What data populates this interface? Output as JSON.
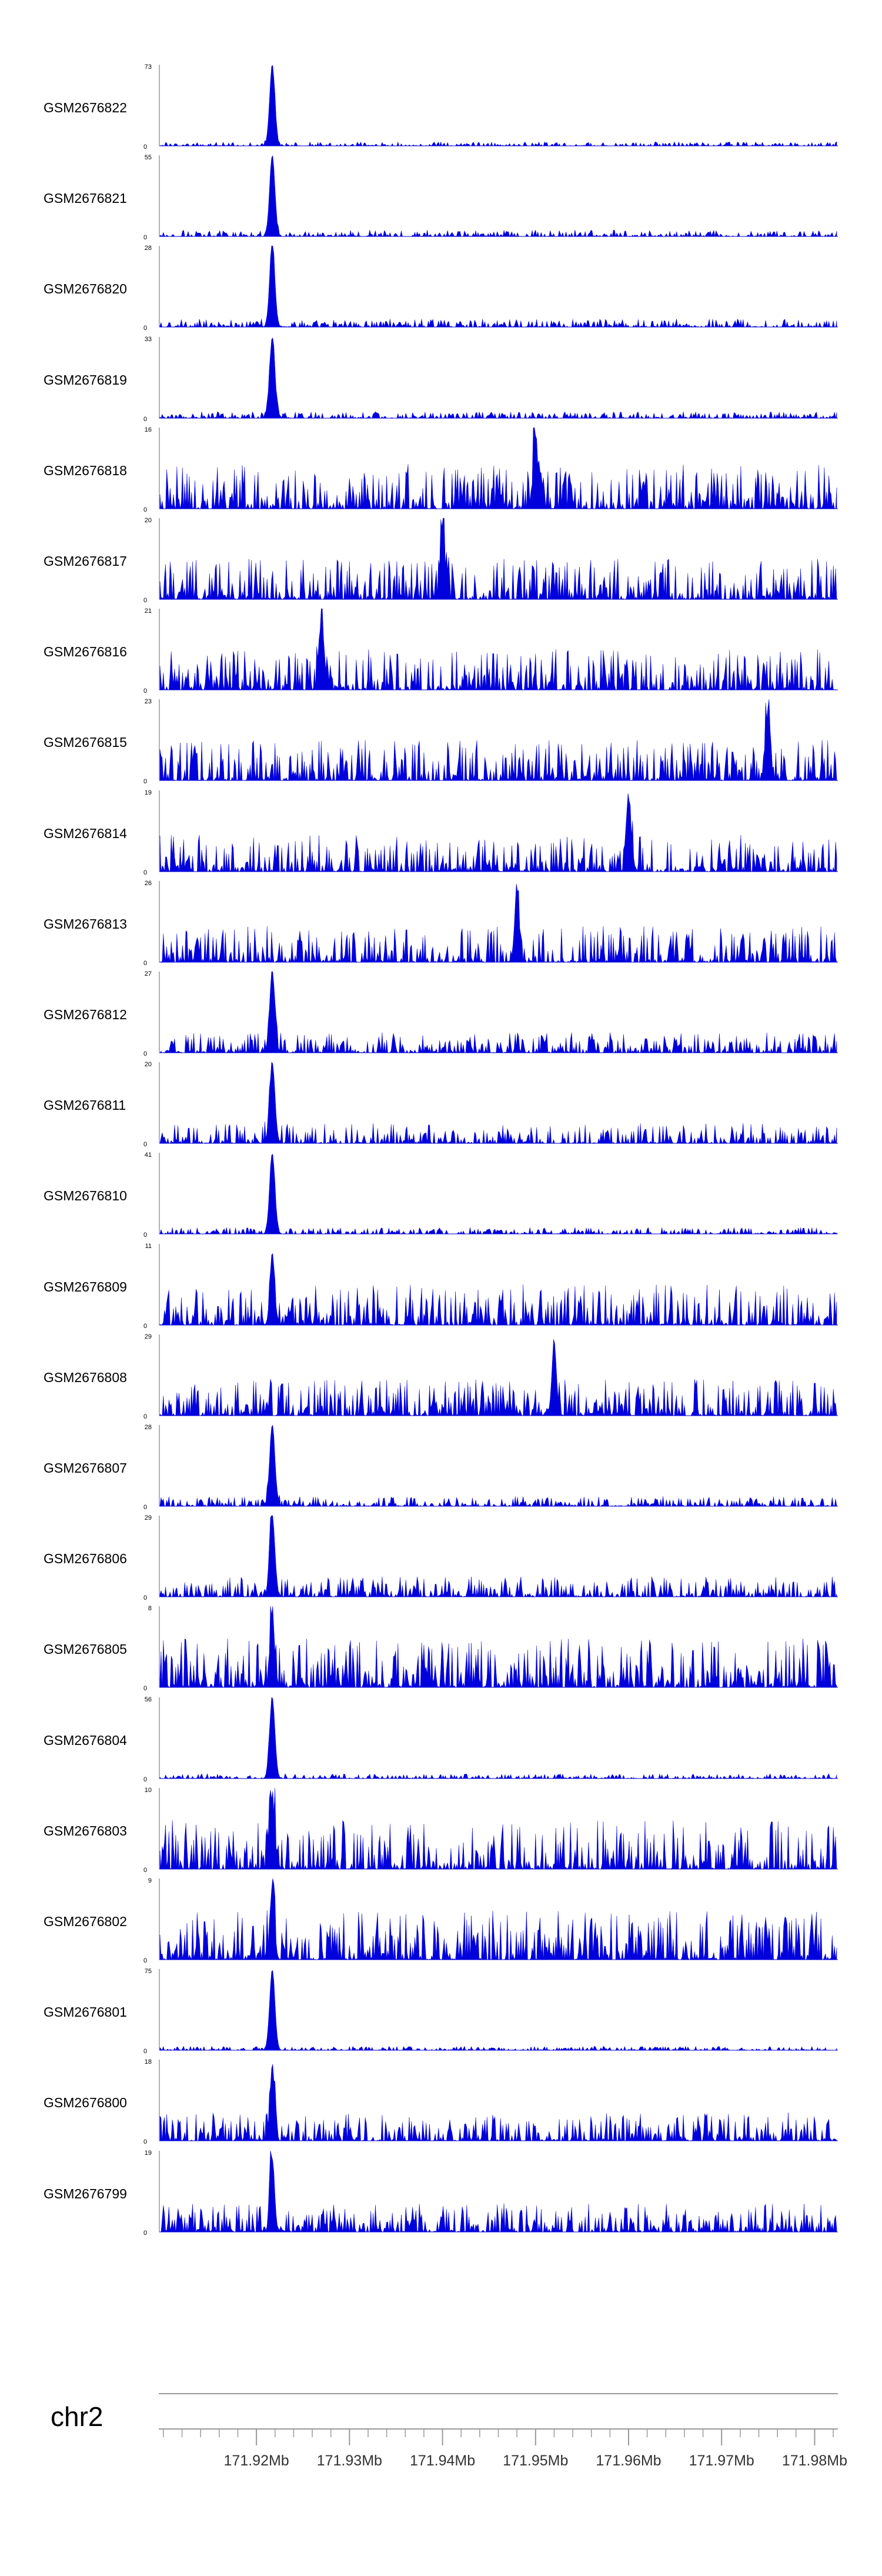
{
  "chart_data": {
    "type": "area",
    "title": "",
    "color": "#0000dd",
    "chromosome": "chr2",
    "xlim": [
      171.9095,
      171.9825
    ],
    "x_unit": "Mb",
    "x_ticks": [
      171.92,
      171.93,
      171.94,
      171.95,
      171.96,
      171.97,
      171.98
    ],
    "x_tick_labels": [
      "171.92Mb",
      "171.93Mb",
      "171.94Mb",
      "171.95Mb",
      "171.96Mb",
      "171.97Mb",
      "171.98Mb"
    ],
    "x_minor_step": 0.002,
    "bins": 50,
    "tracks": [
      {
        "name": "GSM2676822",
        "max_label": "73",
        "min_label": "0",
        "peak_mb": 171.9217,
        "peak_value": 73,
        "baseline": 0.05
      },
      {
        "name": "GSM2676821",
        "max_label": "55",
        "min_label": "0",
        "peak_mb": 171.9217,
        "peak_value": 55,
        "baseline": 0.08
      },
      {
        "name": "GSM2676820",
        "max_label": "28",
        "min_label": "0",
        "peak_mb": 171.9217,
        "peak_value": 28,
        "baseline": 0.1
      },
      {
        "name": "GSM2676819",
        "max_label": "33",
        "min_label": "0",
        "peak_mb": 171.9217,
        "peak_value": 33,
        "baseline": 0.08
      },
      {
        "name": "GSM2676818",
        "max_label": "16",
        "min_label": "0",
        "peak_mb": 171.95,
        "peak_value": 16,
        "baseline": 0.55
      },
      {
        "name": "GSM2676817",
        "max_label": "20",
        "min_label": "0",
        "peak_mb": 171.94,
        "peak_value": 20,
        "baseline": 0.5
      },
      {
        "name": "GSM2676816",
        "max_label": "21",
        "min_label": "0",
        "peak_mb": 171.927,
        "peak_value": 21,
        "baseline": 0.5
      },
      {
        "name": "GSM2676815",
        "max_label": "23",
        "min_label": "0",
        "peak_mb": 171.975,
        "peak_value": 23,
        "baseline": 0.5
      },
      {
        "name": "GSM2676814",
        "max_label": "19",
        "min_label": "0",
        "peak_mb": 171.96,
        "peak_value": 19,
        "baseline": 0.45
      },
      {
        "name": "GSM2676813",
        "max_label": "26",
        "min_label": "0",
        "peak_mb": 171.948,
        "peak_value": 26,
        "baseline": 0.45
      },
      {
        "name": "GSM2676812",
        "max_label": "27",
        "min_label": "0",
        "peak_mb": 171.9217,
        "peak_value": 27,
        "baseline": 0.25
      },
      {
        "name": "GSM2676811",
        "max_label": "20",
        "min_label": "0",
        "peak_mb": 171.9217,
        "peak_value": 20,
        "baseline": 0.25
      },
      {
        "name": "GSM2676810",
        "max_label": "41",
        "min_label": "0",
        "peak_mb": 171.9217,
        "peak_value": 41,
        "baseline": 0.08
      },
      {
        "name": "GSM2676809",
        "max_label": "11",
        "min_label": "0",
        "peak_mb": 171.9217,
        "peak_value": 11,
        "baseline": 0.5
      },
      {
        "name": "GSM2676808",
        "max_label": "29",
        "min_label": "0",
        "peak_mb": 171.952,
        "peak_value": 29,
        "baseline": 0.45
      },
      {
        "name": "GSM2676807",
        "max_label": "28",
        "min_label": "0",
        "peak_mb": 171.9217,
        "peak_value": 28,
        "baseline": 0.12
      },
      {
        "name": "GSM2676806",
        "max_label": "29",
        "min_label": "0",
        "peak_mb": 171.9217,
        "peak_value": 29,
        "baseline": 0.25
      },
      {
        "name": "GSM2676805",
        "max_label": "8",
        "min_label": "0",
        "peak_mb": 171.9217,
        "peak_value": 8,
        "baseline": 0.6
      },
      {
        "name": "GSM2676804",
        "max_label": "56",
        "min_label": "0",
        "peak_mb": 171.9217,
        "peak_value": 56,
        "baseline": 0.06
      },
      {
        "name": "GSM2676803",
        "max_label": "10",
        "min_label": "0",
        "peak_mb": 171.9217,
        "peak_value": 10,
        "baseline": 0.6
      },
      {
        "name": "GSM2676802",
        "max_label": "9",
        "min_label": "0",
        "peak_mb": 171.9217,
        "peak_value": 9,
        "baseline": 0.6
      },
      {
        "name": "GSM2676801",
        "max_label": "75",
        "min_label": "0",
        "peak_mb": 171.9217,
        "peak_value": 75,
        "baseline": 0.05
      },
      {
        "name": "GSM2676800",
        "max_label": "18",
        "min_label": "0",
        "peak_mb": 171.9217,
        "peak_value": 18,
        "baseline": 0.35
      },
      {
        "name": "GSM2676799",
        "max_label": "19",
        "min_label": "0",
        "peak_mb": 171.9217,
        "peak_value": 19,
        "baseline": 0.35
      }
    ]
  }
}
